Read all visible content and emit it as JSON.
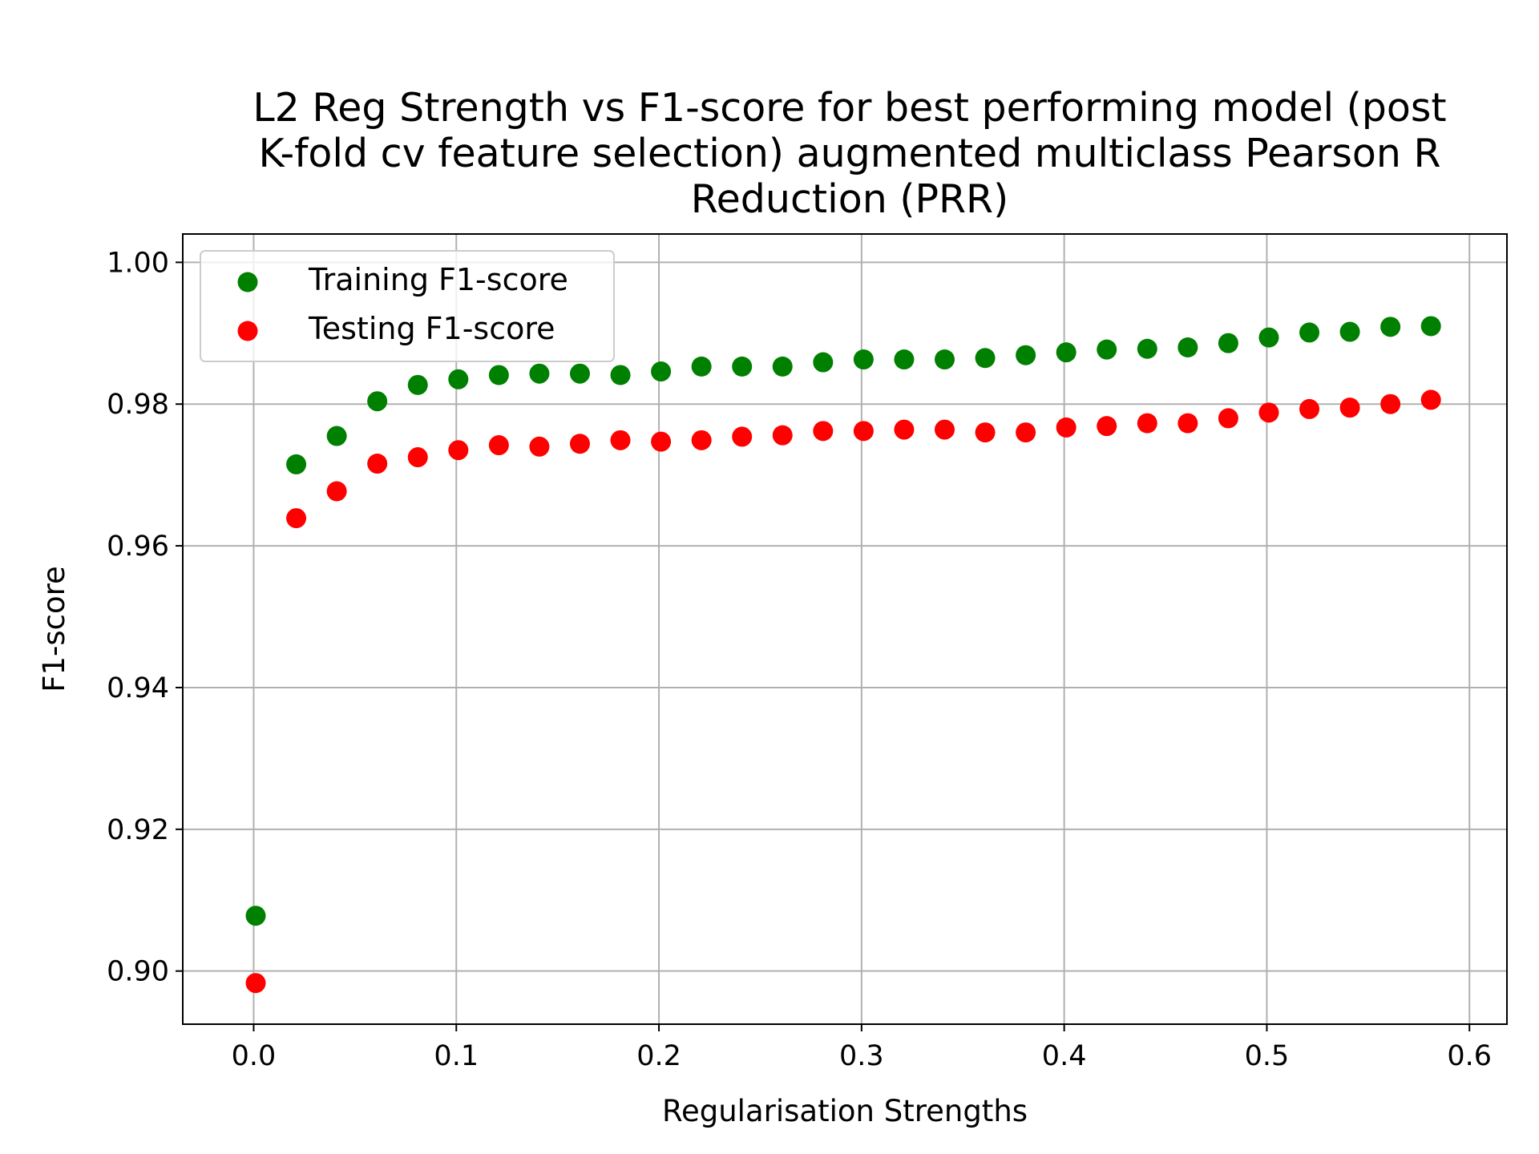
{
  "chart_data": {
    "type": "scatter",
    "title": "L2 Reg Strength vs F1-score for best performing model (post K-fold cv feature selection) augmented multiclass Pearson R Reduction (PRR)",
    "title_lines": [
      "L2 Reg Strength vs F1-score for best performing model (post",
      "K-fold cv feature selection) augmented multiclass Pearson R",
      "Reduction (PRR)"
    ],
    "xlabel": "Regularisation Strengths",
    "ylabel": "F1-score",
    "xlim": [
      -0.035,
      0.6185
    ],
    "ylim": [
      0.8925,
      1.004
    ],
    "xticks": [
      0.0,
      0.1,
      0.2,
      0.3,
      0.4,
      0.5,
      0.6
    ],
    "xtick_labels": [
      "0.0",
      "0.1",
      "0.2",
      "0.3",
      "0.4",
      "0.5",
      "0.6"
    ],
    "yticks": [
      0.9,
      0.92,
      0.94,
      0.96,
      0.98,
      1.0
    ],
    "ytick_labels": [
      "0.90",
      "0.92",
      "0.94",
      "0.96",
      "0.98",
      "1.00"
    ],
    "grid": true,
    "legend_position": "upper-left",
    "x": [
      0.001,
      0.021,
      0.041,
      0.061,
      0.081,
      0.101,
      0.121,
      0.141,
      0.161,
      0.181,
      0.201,
      0.221,
      0.241,
      0.261,
      0.281,
      0.301,
      0.321,
      0.341,
      0.361,
      0.381,
      0.401,
      0.421,
      0.441,
      0.461,
      0.481,
      0.501,
      0.521,
      0.541,
      0.561,
      0.581
    ],
    "series": [
      {
        "name": "Training F1-score",
        "color": "#008000",
        "values": [
          0.9078,
          0.9715,
          0.9755,
          0.9804,
          0.9827,
          0.9835,
          0.9841,
          0.9843,
          0.9843,
          0.9841,
          0.9846,
          0.9853,
          0.9853,
          0.9853,
          0.9859,
          0.9863,
          0.9863,
          0.9863,
          0.9865,
          0.9869,
          0.9873,
          0.9877,
          0.9878,
          0.988,
          0.9886,
          0.9894,
          0.9901,
          0.9902,
          0.9909,
          0.991
        ]
      },
      {
        "name": "Testing F1-score",
        "color": "#ff0000",
        "values": [
          0.8983,
          0.9639,
          0.9677,
          0.9716,
          0.9725,
          0.9735,
          0.9742,
          0.974,
          0.9744,
          0.9749,
          0.9747,
          0.9749,
          0.9754,
          0.9756,
          0.9762,
          0.9762,
          0.9764,
          0.9764,
          0.976,
          0.976,
          0.9767,
          0.9769,
          0.9773,
          0.9773,
          0.978,
          0.9788,
          0.9793,
          0.9795,
          0.98,
          0.9806
        ]
      }
    ]
  }
}
